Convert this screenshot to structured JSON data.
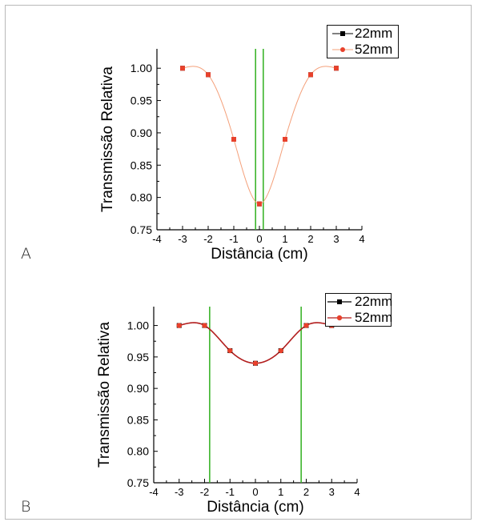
{
  "panels": [
    {
      "label": "A",
      "chart_data": {
        "type": "line",
        "xlabel": "Distância (cm)",
        "ylabel": "Transmissão Relativa",
        "xlim": [
          -4,
          4
        ],
        "ylim": [
          0.75,
          1.03
        ],
        "xticks": [
          "-4",
          "-3",
          "-2",
          "-1",
          "0",
          "1",
          "2",
          "3",
          "4"
        ],
        "yticks": [
          "0.75",
          "0.80",
          "0.85",
          "0.90",
          "0.95",
          "1.00"
        ],
        "x": [
          -3,
          -2,
          -1,
          0,
          1,
          2,
          3
        ],
        "series": [
          {
            "name": "22mm",
            "values": [
              1.0,
              0.99,
              0.89,
              0.79,
              0.89,
              0.99,
              1.0
            ],
            "color": "#000000",
            "marker": "square"
          },
          {
            "name": "52mm",
            "values": [
              1.0,
              0.99,
              0.89,
              0.79,
              0.89,
              0.99,
              1.0
            ],
            "color": "#e8412c",
            "marker": "square"
          }
        ],
        "vlines": [
          -0.15,
          0.15
        ],
        "vline_color": "#3cb52c",
        "curve_color": "#f4a07a",
        "legend_position": "top-right",
        "grid": false
      }
    },
    {
      "label": "B",
      "chart_data": {
        "type": "line",
        "xlabel": "Distância (cm)",
        "ylabel": "Transmissão Relativa",
        "xlim": [
          -4,
          4
        ],
        "ylim": [
          0.75,
          1.03
        ],
        "xticks": [
          "-4",
          "-3",
          "-2",
          "-1",
          "0",
          "1",
          "2",
          "3",
          "4"
        ],
        "yticks": [
          "0.75",
          "0.80",
          "0.85",
          "0.90",
          "0.95",
          "1.00"
        ],
        "x": [
          -3,
          -2,
          -1,
          0,
          1,
          2,
          3
        ],
        "series": [
          {
            "name": "22mm",
            "values": [
              1.0,
              1.0,
              0.96,
              0.94,
              0.96,
              1.0,
              1.0
            ],
            "color": "#000000",
            "marker": "square"
          },
          {
            "name": "52mm",
            "values": [
              1.0,
              1.0,
              0.96,
              0.94,
              0.96,
              1.0,
              1.0
            ],
            "color": "#e8412c",
            "marker": "circle"
          }
        ],
        "vlines": [
          -1.8,
          1.8
        ],
        "vline_color": "#3cb52c",
        "curve_color": "#b21d1d",
        "legend_position": "top-right",
        "grid": false
      }
    }
  ]
}
